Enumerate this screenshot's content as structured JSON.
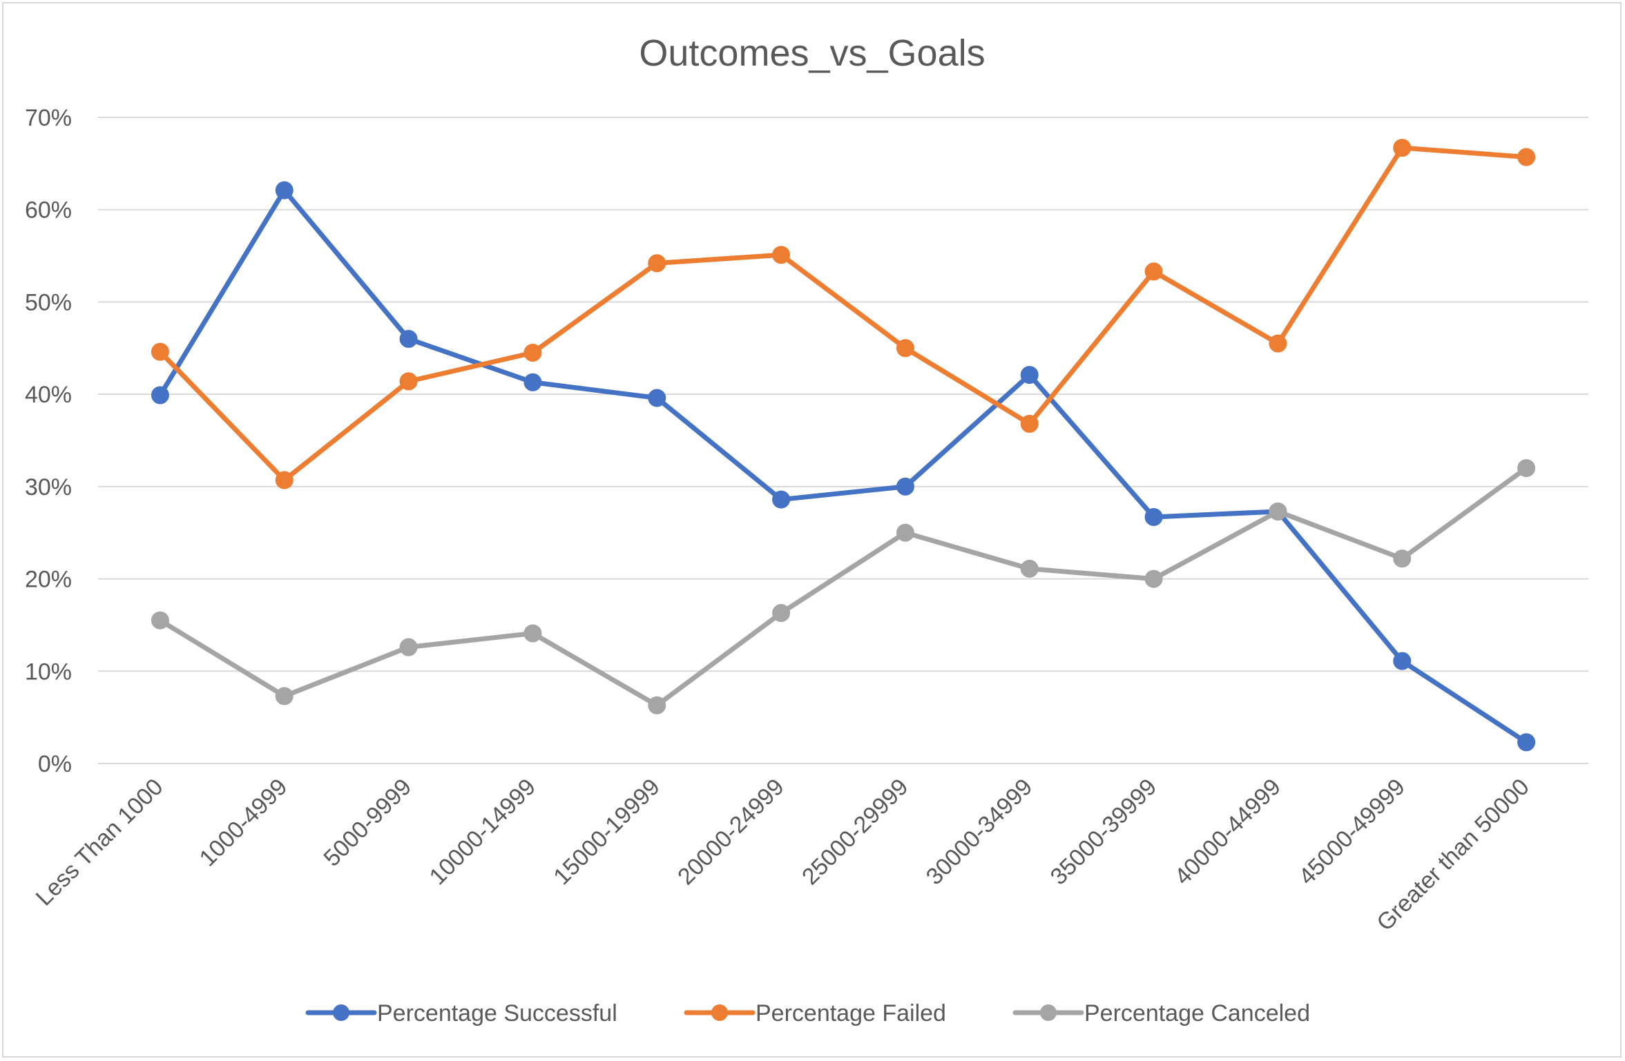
{
  "chart_data": {
    "type": "line",
    "title": "Outcomes_vs_Goals",
    "xlabel": "",
    "ylabel": "",
    "categories": [
      "Less Than 1000",
      "1000-4999",
      "5000-9999",
      "10000-14999",
      "15000-19999",
      "20000-24999",
      "25000-29999",
      "30000-34999",
      "35000-39999",
      "40000-44999",
      "45000-49999",
      "Greater than 50000"
    ],
    "y_ticks": [
      "0%",
      "10%",
      "20%",
      "30%",
      "40%",
      "50%",
      "60%",
      "70%"
    ],
    "ylim": [
      0,
      70
    ],
    "grid": true,
    "legend_position": "bottom",
    "series": [
      {
        "name": "Percentage Successful",
        "color": "#4472c4",
        "values": [
          39.9,
          62.1,
          46.0,
          41.3,
          39.6,
          28.6,
          30.0,
          42.1,
          26.7,
          27.3,
          11.1,
          2.3
        ]
      },
      {
        "name": "Percentage Failed",
        "color": "#ed7d31",
        "values": [
          44.6,
          30.7,
          41.4,
          44.5,
          54.2,
          55.1,
          45.0,
          36.8,
          53.3,
          45.5,
          66.7,
          65.7
        ]
      },
      {
        "name": "Percentage Canceled",
        "color": "#a5a5a5",
        "values": [
          15.5,
          7.3,
          12.6,
          14.1,
          6.3,
          16.3,
          25.0,
          21.1,
          20.0,
          27.3,
          22.2,
          32.0
        ]
      }
    ]
  }
}
